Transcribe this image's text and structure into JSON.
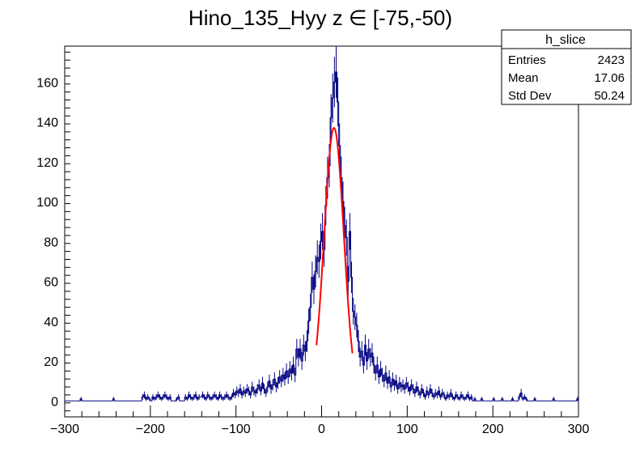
{
  "chart_data": {
    "type": "histogram",
    "title": "Hino_135_Hyy z  ∈ [-75,-50)",
    "xlim": [
      -300,
      300
    ],
    "ylim": [
      -8,
      178
    ],
    "bin_width": 2,
    "x_ticks": [
      "−300",
      "−200",
      "−100",
      "0",
      "100",
      "200",
      "300"
    ],
    "x_tick_values": [
      -300,
      -200,
      -100,
      0,
      100,
      200,
      300
    ],
    "y_ticks": [
      "0",
      "20",
      "40",
      "60",
      "80",
      "100",
      "120",
      "140",
      "160"
    ],
    "y_tick_values": [
      0,
      20,
      40,
      60,
      80,
      100,
      120,
      140,
      160
    ],
    "line_color": "#000080",
    "fit_color": "#ff0000",
    "stats": {
      "name": "h_slice",
      "rows": [
        {
          "label": "Entries",
          "value": "2423"
        },
        {
          "label": "Mean",
          "value": "17.06"
        },
        {
          "label": "Std Dev",
          "value": "50.24"
        }
      ]
    },
    "bins": [
      [
        -300,
        0
      ],
      [
        -282,
        1
      ],
      [
        -280,
        0
      ],
      [
        -244,
        1
      ],
      [
        -242,
        0
      ],
      [
        -236,
        0
      ],
      [
        -210,
        2
      ],
      [
        -208,
        3
      ],
      [
        -206,
        1
      ],
      [
        -204,
        2
      ],
      [
        -202,
        1
      ],
      [
        -200,
        0
      ],
      [
        -198,
        2
      ],
      [
        -196,
        1
      ],
      [
        -194,
        2
      ],
      [
        -192,
        3
      ],
      [
        -190,
        2
      ],
      [
        -188,
        1
      ],
      [
        -186,
        2
      ],
      [
        -184,
        3
      ],
      [
        -182,
        2
      ],
      [
        -180,
        1
      ],
      [
        -178,
        2
      ],
      [
        -176,
        0
      ],
      [
        -170,
        1
      ],
      [
        -168,
        2
      ],
      [
        -166,
        0
      ],
      [
        -160,
        2
      ],
      [
        -158,
        1
      ],
      [
        -156,
        3
      ],
      [
        -154,
        2
      ],
      [
        -152,
        1
      ],
      [
        -150,
        2
      ],
      [
        -148,
        3
      ],
      [
        -146,
        1
      ],
      [
        -144,
        2
      ],
      [
        -140,
        3
      ],
      [
        -138,
        2
      ],
      [
        -136,
        1
      ],
      [
        -134,
        3
      ],
      [
        -132,
        2
      ],
      [
        -130,
        1
      ],
      [
        -128,
        2
      ],
      [
        -126,
        3
      ],
      [
        -124,
        2
      ],
      [
        -122,
        1
      ],
      [
        -120,
        3
      ],
      [
        -118,
        2
      ],
      [
        -116,
        1
      ],
      [
        -114,
        2
      ],
      [
        -112,
        3
      ],
      [
        -110,
        2
      ],
      [
        -108,
        1
      ],
      [
        -106,
        2
      ],
      [
        -104,
        4
      ],
      [
        -102,
        3
      ],
      [
        -100,
        5
      ],
      [
        -98,
        4
      ],
      [
        -96,
        6
      ],
      [
        -94,
        3
      ],
      [
        -92,
        5
      ],
      [
        -90,
        4
      ],
      [
        -88,
        6
      ],
      [
        -86,
        5
      ],
      [
        -84,
        3
      ],
      [
        -82,
        7
      ],
      [
        -80,
        5
      ],
      [
        -78,
        4
      ],
      [
        -76,
        6
      ],
      [
        -74,
        8
      ],
      [
        -72,
        5
      ],
      [
        -70,
        9
      ],
      [
        -68,
        6
      ],
      [
        -66,
        4
      ],
      [
        -64,
        7
      ],
      [
        -62,
        10
      ],
      [
        -60,
        6
      ],
      [
        -58,
        8
      ],
      [
        -56,
        11
      ],
      [
        -54,
        7
      ],
      [
        -52,
        9
      ],
      [
        -50,
        12
      ],
      [
        -48,
        10
      ],
      [
        -46,
        13
      ],
      [
        -44,
        11
      ],
      [
        -42,
        15
      ],
      [
        -40,
        12
      ],
      [
        -38,
        16
      ],
      [
        -36,
        14
      ],
      [
        -34,
        18
      ],
      [
        -32,
        13
      ],
      [
        -30,
        26
      ],
      [
        -28,
        22
      ],
      [
        -26,
        26
      ],
      [
        -24,
        20
      ],
      [
        -22,
        28
      ],
      [
        -20,
        25
      ],
      [
        -18,
        30
      ],
      [
        -16,
        40
      ],
      [
        -14,
        47
      ],
      [
        -12,
        62
      ],
      [
        -10,
        56
      ],
      [
        -8,
        65
      ],
      [
        -6,
        72
      ],
      [
        -4,
        70
      ],
      [
        -2,
        80
      ],
      [
        0,
        85
      ],
      [
        2,
        76
      ],
      [
        4,
        98
      ],
      [
        6,
        112
      ],
      [
        8,
        118
      ],
      [
        10,
        142
      ],
      [
        12,
        152
      ],
      [
        14,
        160
      ],
      [
        16,
        165
      ],
      [
        18,
        150
      ],
      [
        20,
        128
      ],
      [
        22,
        112
      ],
      [
        24,
        100
      ],
      [
        26,
        88
      ],
      [
        28,
        82
      ],
      [
        30,
        60
      ],
      [
        32,
        85
      ],
      [
        34,
        62
      ],
      [
        36,
        45
      ],
      [
        38,
        42
      ],
      [
        40,
        38
      ],
      [
        42,
        30
      ],
      [
        44,
        22
      ],
      [
        46,
        25
      ],
      [
        48,
        18
      ],
      [
        50,
        28
      ],
      [
        52,
        20
      ],
      [
        54,
        26
      ],
      [
        56,
        22
      ],
      [
        58,
        24
      ],
      [
        60,
        18
      ],
      [
        62,
        14
      ],
      [
        64,
        18
      ],
      [
        66,
        12
      ],
      [
        68,
        16
      ],
      [
        70,
        13
      ],
      [
        72,
        10
      ],
      [
        74,
        14
      ],
      [
        76,
        9
      ],
      [
        78,
        12
      ],
      [
        80,
        7
      ],
      [
        82,
        11
      ],
      [
        84,
        8
      ],
      [
        86,
        10
      ],
      [
        88,
        6
      ],
      [
        90,
        9
      ],
      [
        92,
        7
      ],
      [
        94,
        8
      ],
      [
        96,
        6
      ],
      [
        98,
        9
      ],
      [
        100,
        7
      ],
      [
        102,
        5
      ],
      [
        104,
        8
      ],
      [
        106,
        6
      ],
      [
        108,
        4
      ],
      [
        110,
        7
      ],
      [
        112,
        5
      ],
      [
        114,
        3
      ],
      [
        116,
        6
      ],
      [
        118,
        4
      ],
      [
        120,
        2
      ],
      [
        122,
        5
      ],
      [
        124,
        3
      ],
      [
        126,
        6
      ],
      [
        128,
        4
      ],
      [
        130,
        2
      ],
      [
        132,
        4
      ],
      [
        134,
        3
      ],
      [
        136,
        5
      ],
      [
        138,
        2
      ],
      [
        140,
        4
      ],
      [
        142,
        3
      ],
      [
        144,
        1
      ],
      [
        146,
        3
      ],
      [
        148,
        2
      ],
      [
        150,
        4
      ],
      [
        152,
        2
      ],
      [
        154,
        1
      ],
      [
        156,
        3
      ],
      [
        158,
        2
      ],
      [
        160,
        1
      ],
      [
        162,
        3
      ],
      [
        164,
        2
      ],
      [
        166,
        1
      ],
      [
        168,
        2
      ],
      [
        170,
        3
      ],
      [
        172,
        1
      ],
      [
        174,
        2
      ],
      [
        176,
        0
      ],
      [
        178,
        1
      ],
      [
        180,
        0
      ],
      [
        186,
        1
      ],
      [
        188,
        0
      ],
      [
        200,
        1
      ],
      [
        202,
        0
      ],
      [
        210,
        1
      ],
      [
        212,
        0
      ],
      [
        222,
        1
      ],
      [
        224,
        0
      ],
      [
        230,
        2
      ],
      [
        232,
        4
      ],
      [
        234,
        1
      ],
      [
        236,
        2
      ],
      [
        238,
        1
      ],
      [
        240,
        0
      ],
      [
        248,
        1
      ],
      [
        250,
        0
      ],
      [
        270,
        1
      ],
      [
        272,
        0
      ],
      [
        298,
        1
      ]
    ],
    "fit": {
      "function": "gaussian",
      "x_range": [
        -6,
        36
      ],
      "amplitude": 137,
      "mean": 14.5,
      "sigma": 11.5
    }
  }
}
